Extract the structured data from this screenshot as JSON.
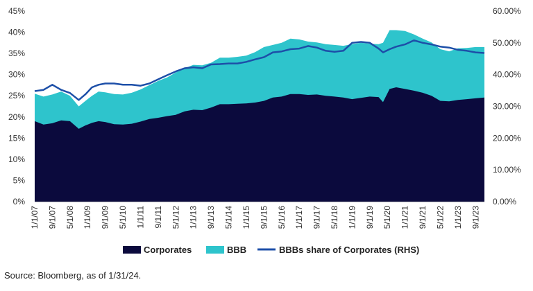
{
  "chart_data": {
    "type": "area",
    "x_ticks": [
      "1/1/07",
      "9/1/07",
      "5/1/08",
      "1/1/09",
      "9/1/09",
      "5/1/10",
      "1/1/11",
      "9/1/11",
      "5/1/12",
      "1/1/13",
      "9/1/13",
      "5/1/14",
      "1/1/15",
      "9/1/15",
      "5/1/16",
      "1/1/17",
      "9/1/17",
      "5/1/18",
      "1/1/19",
      "9/1/19",
      "5/1/20",
      "1/1/21",
      "9/1/21",
      "5/1/22",
      "1/1/23",
      "9/1/23"
    ],
    "y_left_ticks": [
      "0%",
      "5%",
      "10%",
      "15%",
      "20%",
      "25%",
      "30%",
      "35%",
      "40%",
      "45%"
    ],
    "y_right_ticks": [
      "0.00%",
      "10.00%",
      "20.00%",
      "30.00%",
      "40.00%",
      "50.00%",
      "60.00%"
    ],
    "ylim_left": [
      0,
      45
    ],
    "ylim_right": [
      0,
      60
    ],
    "x": [
      "1/1/07",
      "5/1/07",
      "9/1/07",
      "1/1/08",
      "5/1/08",
      "9/1/08",
      "12/1/08",
      "3/1/09",
      "6/1/09",
      "9/1/09",
      "1/1/10",
      "5/1/10",
      "9/1/10",
      "1/1/11",
      "5/1/11",
      "9/1/11",
      "1/1/12",
      "5/1/12",
      "9/1/12",
      "1/1/13",
      "5/1/13",
      "9/1/13",
      "1/1/14",
      "5/1/14",
      "9/1/14",
      "1/1/15",
      "5/1/15",
      "9/1/15",
      "1/1/16",
      "5/1/16",
      "9/1/16",
      "1/1/17",
      "5/1/17",
      "9/1/17",
      "1/1/18",
      "5/1/18",
      "9/1/18",
      "1/1/19",
      "5/1/19",
      "9/1/19",
      "1/1/20",
      "3/1/20",
      "6/1/20",
      "9/1/20",
      "1/1/21",
      "5/1/21",
      "9/1/21",
      "1/1/22",
      "5/1/22",
      "9/1/22",
      "1/1/23",
      "5/1/23",
      "9/1/23",
      "1/1/24"
    ],
    "series": [
      {
        "name": "Corporates",
        "axis": "left",
        "color": "#0b0a3d",
        "values": [
          19.0,
          18.2,
          18.5,
          19.2,
          19.0,
          17.2,
          18.0,
          18.6,
          19.0,
          18.8,
          18.3,
          18.2,
          18.4,
          18.9,
          19.5,
          19.8,
          20.2,
          20.5,
          21.3,
          21.7,
          21.6,
          22.2,
          23.0,
          23.0,
          23.1,
          23.2,
          23.4,
          23.8,
          24.6,
          24.8,
          25.4,
          25.4,
          25.2,
          25.3,
          25.0,
          24.8,
          24.6,
          24.2,
          24.5,
          24.8,
          24.7,
          23.5,
          26.6,
          27.0,
          26.6,
          26.2,
          25.7,
          25.0,
          23.8,
          23.7,
          24.0,
          24.2,
          24.4,
          24.6
        ]
      },
      {
        "name": "BBB",
        "axis": "left",
        "color": "#2ec4cc",
        "values": [
          25.5,
          24.8,
          25.3,
          26.0,
          25.0,
          22.5,
          23.8,
          25.0,
          26.0,
          25.8,
          25.4,
          25.3,
          25.7,
          26.5,
          27.5,
          28.5,
          29.3,
          30.5,
          31.5,
          32.3,
          32.2,
          32.8,
          34.0,
          34.0,
          34.2,
          34.5,
          35.3,
          36.5,
          37.0,
          37.5,
          38.5,
          38.3,
          37.8,
          37.6,
          37.2,
          37.0,
          36.8,
          37.2,
          37.5,
          37.3,
          37.2,
          37.5,
          40.5,
          40.5,
          40.3,
          39.5,
          38.5,
          37.6,
          36.0,
          35.5,
          36.2,
          36.3,
          36.5,
          36.5
        ]
      },
      {
        "name": "BBBs share of Corporates (RHS)",
        "axis": "right",
        "color": "#1d4fa8",
        "values": [
          34.8,
          35.2,
          36.8,
          35.2,
          34.2,
          32.0,
          33.8,
          36.0,
          36.8,
          37.2,
          37.2,
          36.8,
          36.8,
          36.5,
          37.2,
          38.5,
          39.8,
          41.0,
          42.0,
          42.3,
          42.0,
          43.2,
          43.3,
          43.5,
          43.5,
          44.0,
          44.8,
          45.5,
          47.0,
          47.3,
          48.0,
          48.2,
          49.0,
          48.5,
          47.5,
          47.2,
          47.5,
          50.0,
          50.3,
          50.0,
          48.2,
          47.0,
          48.0,
          48.8,
          49.5,
          50.8,
          50.0,
          49.5,
          48.8,
          48.5,
          47.8,
          47.5,
          47.0,
          46.8
        ]
      }
    ],
    "legend": [
      "Corporates",
      "BBB",
      "BBBs share of Corporates (RHS)"
    ],
    "legend_position": "bottom"
  },
  "source_text": "Source: Bloomberg, as of 1/31/24."
}
